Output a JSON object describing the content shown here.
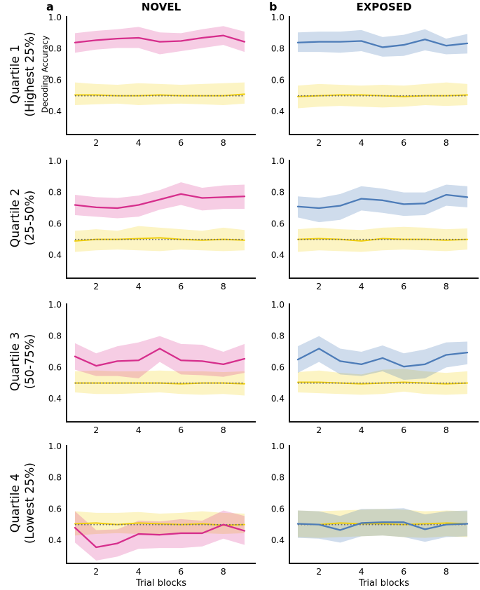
{
  "figure": {
    "background": "#ffffff",
    "axis_color": "#151515",
    "chance_color": "#6b6b6b",
    "control_line_color": "#f0cf0c",
    "control_band_color": "rgba(242,211,19,0.25)",
    "columns": [
      {
        "letter": "a",
        "title": "NOVEL",
        "line_color": "#d62e8c",
        "band_color": "rgba(217,48,143,0.24)"
      },
      {
        "letter": "b",
        "title": "EXPOSED",
        "line_color": "#4d7cb8",
        "band_color": "rgba(77,125,184,0.27)"
      }
    ],
    "rows": [
      {
        "line1": "Quartile 1",
        "line2": "(Highest 25%)"
      },
      {
        "line1": "Quartile 2",
        "line2": "(25-50%)"
      },
      {
        "line1": "Quartile 3",
        "line2": "(50-75%)"
      },
      {
        "line1": "Quartile 4",
        "line2": "(Lowest 25%)"
      }
    ],
    "ylabel": "Decoding Accuracy",
    "xlabel": "Trial blocks"
  },
  "chart_data": {
    "type": "line",
    "x": [
      1,
      2,
      3,
      4,
      5,
      6,
      7,
      8,
      9
    ],
    "xticks": [
      2,
      4,
      6,
      8
    ],
    "yticks": [
      0.4,
      0.6,
      0.8,
      1.0
    ],
    "xlim": [
      0.6,
      9.55
    ],
    "ylim": [
      0.25,
      1.02
    ],
    "xlabel": "Trial blocks",
    "ylabel": "Decoding Accuracy",
    "chance_level": 0.5,
    "legend": "none",
    "grid": false,
    "panels": [
      {
        "name": "novel-quartile-1",
        "column": "NOVEL",
        "row": "Quartile 1 (Highest 25%)",
        "main": {
          "values": [
            0.84,
            0.855,
            0.865,
            0.87,
            0.845,
            0.85,
            0.87,
            0.885,
            0.845
          ],
          "upper": [
            0.9,
            0.915,
            0.925,
            0.94,
            0.905,
            0.9,
            0.925,
            0.945,
            0.91
          ],
          "lower": [
            0.775,
            0.795,
            0.805,
            0.805,
            0.765,
            0.785,
            0.805,
            0.825,
            0.78
          ]
        },
        "control": {
          "values": [
            0.505,
            0.505,
            0.5,
            0.5,
            0.505,
            0.5,
            0.5,
            0.5,
            0.51
          ],
          "upper": [
            0.585,
            0.575,
            0.57,
            0.58,
            0.575,
            0.57,
            0.575,
            0.58,
            0.585
          ],
          "lower": [
            0.44,
            0.445,
            0.45,
            0.44,
            0.445,
            0.45,
            0.445,
            0.44,
            0.45
          ]
        }
      },
      {
        "name": "exposed-quartile-1",
        "column": "EXPOSED",
        "row": "Quartile 1 (Highest 25%)",
        "main": {
          "values": [
            0.84,
            0.845,
            0.845,
            0.85,
            0.81,
            0.825,
            0.86,
            0.82,
            0.835
          ],
          "upper": [
            0.905,
            0.91,
            0.91,
            0.92,
            0.875,
            0.89,
            0.925,
            0.865,
            0.895
          ],
          "lower": [
            0.78,
            0.78,
            0.775,
            0.785,
            0.75,
            0.755,
            0.79,
            0.765,
            0.77
          ]
        },
        "control": {
          "values": [
            0.495,
            0.5,
            0.505,
            0.505,
            0.5,
            0.495,
            0.5,
            0.5,
            0.505
          ],
          "upper": [
            0.565,
            0.575,
            0.57,
            0.565,
            0.57,
            0.565,
            0.575,
            0.585,
            0.575
          ],
          "lower": [
            0.42,
            0.43,
            0.435,
            0.43,
            0.425,
            0.43,
            0.44,
            0.435,
            0.44
          ]
        }
      },
      {
        "name": "novel-quartile-2",
        "column": "NOVEL",
        "row": "Quartile 2 (25-50%)",
        "main": {
          "values": [
            0.72,
            0.705,
            0.7,
            0.72,
            0.755,
            0.79,
            0.765,
            0.77,
            0.775
          ],
          "upper": [
            0.785,
            0.77,
            0.765,
            0.78,
            0.815,
            0.865,
            0.83,
            0.845,
            0.85
          ],
          "lower": [
            0.655,
            0.645,
            0.635,
            0.645,
            0.69,
            0.72,
            0.685,
            0.695,
            0.695
          ]
        },
        "control": {
          "values": [
            0.49,
            0.5,
            0.5,
            0.505,
            0.51,
            0.5,
            0.495,
            0.5,
            0.495
          ],
          "upper": [
            0.555,
            0.565,
            0.555,
            0.585,
            0.575,
            0.565,
            0.555,
            0.575,
            0.56
          ],
          "lower": [
            0.42,
            0.43,
            0.435,
            0.43,
            0.425,
            0.435,
            0.43,
            0.425,
            0.43
          ]
        }
      },
      {
        "name": "exposed-quartile-2",
        "column": "EXPOSED",
        "row": "Quartile 2 (25-50%)",
        "main": {
          "values": [
            0.71,
            0.7,
            0.715,
            0.76,
            0.75,
            0.725,
            0.73,
            0.785,
            0.77
          ],
          "upper": [
            0.775,
            0.765,
            0.79,
            0.84,
            0.825,
            0.8,
            0.8,
            0.85,
            0.84
          ],
          "lower": [
            0.64,
            0.61,
            0.625,
            0.685,
            0.67,
            0.65,
            0.655,
            0.715,
            0.705
          ]
        },
        "control": {
          "values": [
            0.5,
            0.505,
            0.5,
            0.49,
            0.505,
            0.5,
            0.5,
            0.495,
            0.5
          ],
          "upper": [
            0.565,
            0.575,
            0.565,
            0.56,
            0.575,
            0.58,
            0.575,
            0.565,
            0.57
          ],
          "lower": [
            0.42,
            0.43,
            0.425,
            0.42,
            0.43,
            0.435,
            0.43,
            0.425,
            0.435
          ]
        }
      },
      {
        "name": "novel-quartile-3",
        "column": "NOVEL",
        "row": "Quartile 3 (50-75%)",
        "main": {
          "values": [
            0.67,
            0.61,
            0.64,
            0.645,
            0.72,
            0.645,
            0.64,
            0.62,
            0.655
          ],
          "upper": [
            0.755,
            0.69,
            0.735,
            0.76,
            0.8,
            0.75,
            0.745,
            0.7,
            0.75
          ],
          "lower": [
            0.585,
            0.545,
            0.545,
            0.53,
            0.635,
            0.555,
            0.55,
            0.54,
            0.565
          ]
        },
        "control": {
          "values": [
            0.5,
            0.5,
            0.5,
            0.5,
            0.5,
            0.495,
            0.5,
            0.5,
            0.495
          ],
          "upper": [
            0.575,
            0.58,
            0.575,
            0.575,
            0.58,
            0.575,
            0.575,
            0.57,
            0.575
          ],
          "lower": [
            0.44,
            0.43,
            0.43,
            0.435,
            0.44,
            0.43,
            0.425,
            0.43,
            0.42
          ]
        }
      },
      {
        "name": "exposed-quartile-3",
        "column": "EXPOSED",
        "row": "Quartile 3 (50-75%)",
        "main": {
          "values": [
            0.65,
            0.72,
            0.64,
            0.62,
            0.66,
            0.605,
            0.62,
            0.68,
            0.695
          ],
          "upper": [
            0.735,
            0.8,
            0.72,
            0.7,
            0.74,
            0.69,
            0.715,
            0.76,
            0.765
          ],
          "lower": [
            0.565,
            0.635,
            0.555,
            0.545,
            0.575,
            0.52,
            0.53,
            0.6,
            0.62
          ]
        },
        "control": {
          "values": [
            0.505,
            0.505,
            0.5,
            0.495,
            0.5,
            0.505,
            0.5,
            0.495,
            0.5
          ],
          "upper": [
            0.57,
            0.58,
            0.565,
            0.555,
            0.585,
            0.59,
            0.575,
            0.565,
            0.575
          ],
          "lower": [
            0.44,
            0.435,
            0.43,
            0.425,
            0.43,
            0.445,
            0.43,
            0.425,
            0.43
          ]
        }
      },
      {
        "name": "novel-quartile-4",
        "column": "NOVEL",
        "row": "Quartile 4 (Lowest 25%)",
        "main": {
          "values": [
            0.48,
            0.355,
            0.38,
            0.44,
            0.435,
            0.445,
            0.445,
            0.5,
            0.46
          ],
          "upper": [
            0.585,
            0.465,
            0.47,
            0.525,
            0.52,
            0.535,
            0.525,
            0.59,
            0.555
          ],
          "lower": [
            0.385,
            0.27,
            0.295,
            0.345,
            0.35,
            0.35,
            0.36,
            0.41,
            0.37
          ]
        },
        "control": {
          "values": [
            0.505,
            0.51,
            0.5,
            0.51,
            0.505,
            0.5,
            0.505,
            0.495,
            0.5
          ],
          "upper": [
            0.585,
            0.575,
            0.575,
            0.58,
            0.57,
            0.575,
            0.585,
            0.575,
            0.57
          ],
          "lower": [
            0.43,
            0.44,
            0.445,
            0.44,
            0.435,
            0.44,
            0.445,
            0.44,
            0.445
          ]
        }
      },
      {
        "name": "exposed-quartile-4",
        "column": "EXPOSED",
        "row": "Quartile 4 (Lowest 25%)",
        "main": {
          "values": [
            0.505,
            0.5,
            0.465,
            0.51,
            0.515,
            0.515,
            0.47,
            0.5,
            0.505
          ],
          "upper": [
            0.59,
            0.585,
            0.555,
            0.6,
            0.6,
            0.605,
            0.565,
            0.585,
            0.59
          ],
          "lower": [
            0.415,
            0.41,
            0.385,
            0.425,
            0.43,
            0.42,
            0.39,
            0.42,
            0.425
          ]
        },
        "control": {
          "values": [
            0.505,
            0.5,
            0.51,
            0.505,
            0.505,
            0.5,
            0.505,
            0.51,
            0.505
          ],
          "upper": [
            0.59,
            0.585,
            0.59,
            0.595,
            0.6,
            0.595,
            0.585,
            0.59,
            0.585
          ],
          "lower": [
            0.42,
            0.415,
            0.42,
            0.425,
            0.43,
            0.42,
            0.415,
            0.425,
            0.42
          ]
        }
      }
    ]
  }
}
